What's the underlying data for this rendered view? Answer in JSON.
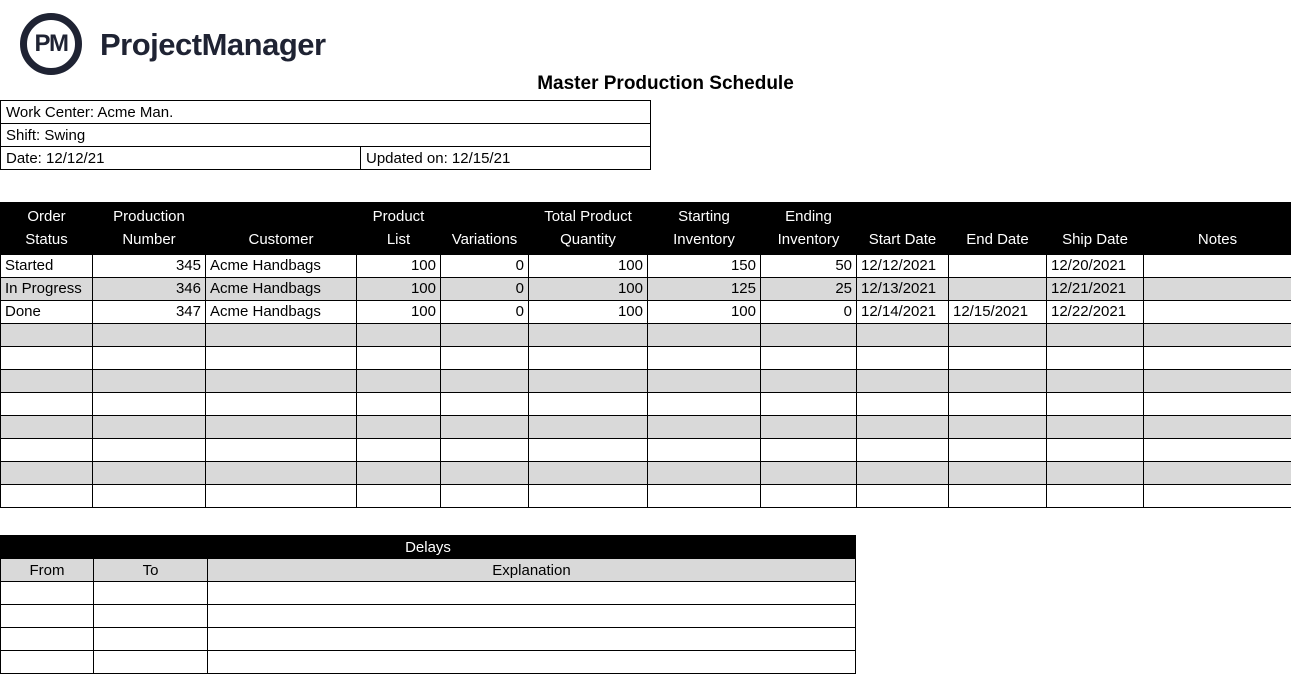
{
  "brand": {
    "monogram": "PM",
    "wordmark": "ProjectManager",
    "logo_color": "#1f2333"
  },
  "title": "Master Production Schedule",
  "info_box": {
    "work_center": "Work Center: Acme Man.",
    "shift": "Shift: Swing",
    "date": "Date: 12/12/21",
    "updated_on": "Updated on: 12/15/21"
  },
  "main_table": {
    "headers": [
      "Order\nStatus",
      "Production\nNumber",
      "Customer",
      "Product\nList",
      "Variations",
      "Total Product\nQuantity",
      "Starting\nInventory",
      "Ending\nInventory",
      "Start Date",
      "End Date",
      "Ship Date",
      "Notes"
    ],
    "rows": [
      [
        "Started",
        "345",
        "Acme Handbags",
        "100",
        "0",
        "100",
        "150",
        "50",
        "12/12/2021",
        "",
        "12/20/2021",
        ""
      ],
      [
        "In Progress",
        "346",
        "Acme Handbags",
        "100",
        "0",
        "100",
        "125",
        "25",
        "12/13/2021",
        "",
        "12/21/2021",
        ""
      ],
      [
        "Done",
        "347",
        "Acme Handbags",
        "100",
        "0",
        "100",
        "100",
        "0",
        "12/14/2021",
        "12/15/2021",
        "12/22/2021",
        ""
      ],
      [
        "",
        "",
        "",
        "",
        "",
        "",
        "",
        "",
        "",
        "",
        "",
        ""
      ],
      [
        "",
        "",
        "",
        "",
        "",
        "",
        "",
        "",
        "",
        "",
        "",
        ""
      ],
      [
        "",
        "",
        "",
        "",
        "",
        "",
        "",
        "",
        "",
        "",
        "",
        ""
      ],
      [
        "",
        "",
        "",
        "",
        "",
        "",
        "",
        "",
        "",
        "",
        "",
        ""
      ],
      [
        "",
        "",
        "",
        "",
        "",
        "",
        "",
        "",
        "",
        "",
        "",
        ""
      ],
      [
        "",
        "",
        "",
        "",
        "",
        "",
        "",
        "",
        "",
        "",
        "",
        ""
      ],
      [
        "",
        "",
        "",
        "",
        "",
        "",
        "",
        "",
        "",
        "",
        "",
        ""
      ],
      [
        "",
        "",
        "",
        "",
        "",
        "",
        "",
        "",
        "",
        "",
        "",
        ""
      ]
    ]
  },
  "delays_table": {
    "title": "Delays",
    "headers": [
      "From",
      "To",
      "Explanation"
    ],
    "rows": [
      [
        "",
        "",
        ""
      ],
      [
        "",
        "",
        ""
      ],
      [
        "",
        "",
        ""
      ],
      [
        "",
        "",
        ""
      ]
    ]
  },
  "colors": {
    "header_bg": "#000000",
    "stripe": "#d9d9d9",
    "logo": "#1f2333"
  }
}
